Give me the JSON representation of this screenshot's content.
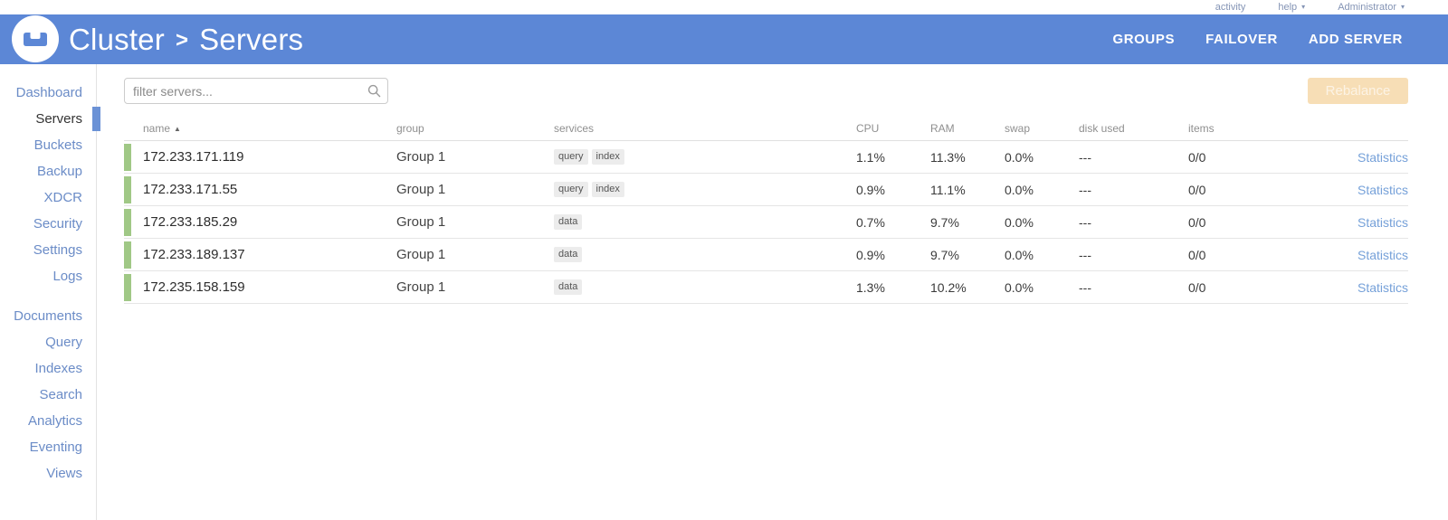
{
  "topbar": {
    "activity_label": "activity",
    "help_label": "help",
    "user_label": "Administrator"
  },
  "header": {
    "breadcrumb": {
      "root": "Cluster",
      "separator": ">",
      "current": "Servers"
    },
    "actions": [
      {
        "label": "GROUPS"
      },
      {
        "label": "FAILOVER"
      },
      {
        "label": "ADD SERVER"
      }
    ]
  },
  "sidebar": {
    "groups": [
      {
        "items": [
          {
            "label": "Dashboard",
            "active": false
          },
          {
            "label": "Servers",
            "active": true
          },
          {
            "label": "Buckets",
            "active": false
          },
          {
            "label": "Backup",
            "active": false
          },
          {
            "label": "XDCR",
            "active": false
          },
          {
            "label": "Security",
            "active": false
          },
          {
            "label": "Settings",
            "active": false
          },
          {
            "label": "Logs",
            "active": false
          }
        ]
      },
      {
        "items": [
          {
            "label": "Documents",
            "active": false
          },
          {
            "label": "Query",
            "active": false
          },
          {
            "label": "Indexes",
            "active": false
          },
          {
            "label": "Search",
            "active": false
          },
          {
            "label": "Analytics",
            "active": false
          },
          {
            "label": "Eventing",
            "active": false
          },
          {
            "label": "Views",
            "active": false
          }
        ]
      }
    ]
  },
  "toolbar": {
    "filter_placeholder": "filter servers...",
    "rebalance_label": "Rebalance"
  },
  "servers_table": {
    "columns": [
      "name",
      "group",
      "services",
      "CPU",
      "RAM",
      "swap",
      "disk used",
      "items"
    ],
    "sort_column": "name",
    "sort_direction": "asc",
    "stats_label": "Statistics",
    "status_color": "#a0c886",
    "rows": [
      {
        "name": "172.233.171.119",
        "group": "Group 1",
        "services": [
          "query",
          "index"
        ],
        "cpu": "1.1%",
        "ram": "11.3%",
        "swap": "0.0%",
        "disk_used": "---",
        "items": "0/0"
      },
      {
        "name": "172.233.171.55",
        "group": "Group 1",
        "services": [
          "query",
          "index"
        ],
        "cpu": "0.9%",
        "ram": "11.1%",
        "swap": "0.0%",
        "disk_used": "---",
        "items": "0/0"
      },
      {
        "name": "172.233.185.29",
        "group": "Group 1",
        "services": [
          "data"
        ],
        "cpu": "0.7%",
        "ram": "9.7%",
        "swap": "0.0%",
        "disk_used": "---",
        "items": "0/0"
      },
      {
        "name": "172.233.189.137",
        "group": "Group 1",
        "services": [
          "data"
        ],
        "cpu": "0.9%",
        "ram": "9.7%",
        "swap": "0.0%",
        "disk_used": "---",
        "items": "0/0"
      },
      {
        "name": "172.235.158.159",
        "group": "Group 1",
        "services": [
          "data"
        ],
        "cpu": "1.3%",
        "ram": "10.2%",
        "swap": "0.0%",
        "disk_used": "---",
        "items": "0/0"
      }
    ]
  }
}
